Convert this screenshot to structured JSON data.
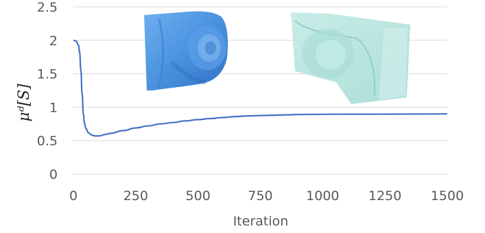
{
  "chart_data": {
    "type": "line",
    "title": "",
    "xlabel": "Iteration",
    "ylabel": "μᵈ[S]",
    "xlim": [
      0,
      1500
    ],
    "ylim": [
      0,
      2.5
    ],
    "x_ticks": [
      0,
      250,
      500,
      750,
      1000,
      1250,
      1500
    ],
    "y_ticks": [
      0,
      0.5,
      1,
      1.5,
      2,
      2.5
    ],
    "x_tick_labels": [
      "0",
      "250",
      "500",
      "750",
      "1000",
      "1250",
      "1500"
    ],
    "y_tick_labels": [
      "0",
      "0.5",
      "1",
      "1.5",
      "2",
      "2.5"
    ],
    "grid": "horizontal",
    "series": [
      {
        "color": "#4472c4",
        "x": [
          0,
          10,
          20,
          25,
          30,
          35,
          40,
          45,
          50,
          60,
          70,
          80,
          90,
          100,
          110,
          125,
          150,
          200,
          250,
          300,
          350,
          400,
          450,
          500,
          550,
          600,
          650,
          700,
          750,
          800,
          850,
          900,
          1000,
          1100,
          1200,
          1300,
          1400,
          1500
        ],
        "y": [
          2.0,
          1.99,
          1.93,
          1.82,
          1.55,
          1.2,
          0.9,
          0.75,
          0.68,
          0.62,
          0.59,
          0.575,
          0.57,
          0.57,
          0.575,
          0.59,
          0.61,
          0.65,
          0.69,
          0.72,
          0.75,
          0.77,
          0.795,
          0.815,
          0.83,
          0.845,
          0.86,
          0.87,
          0.875,
          0.88,
          0.885,
          0.89,
          0.893,
          0.895,
          0.896,
          0.897,
          0.898,
          0.9
        ]
      }
    ]
  },
  "insets": {
    "left_shape": "blue-textured-surface-render",
    "right_shape": "translucent-teal-volume-render"
  }
}
